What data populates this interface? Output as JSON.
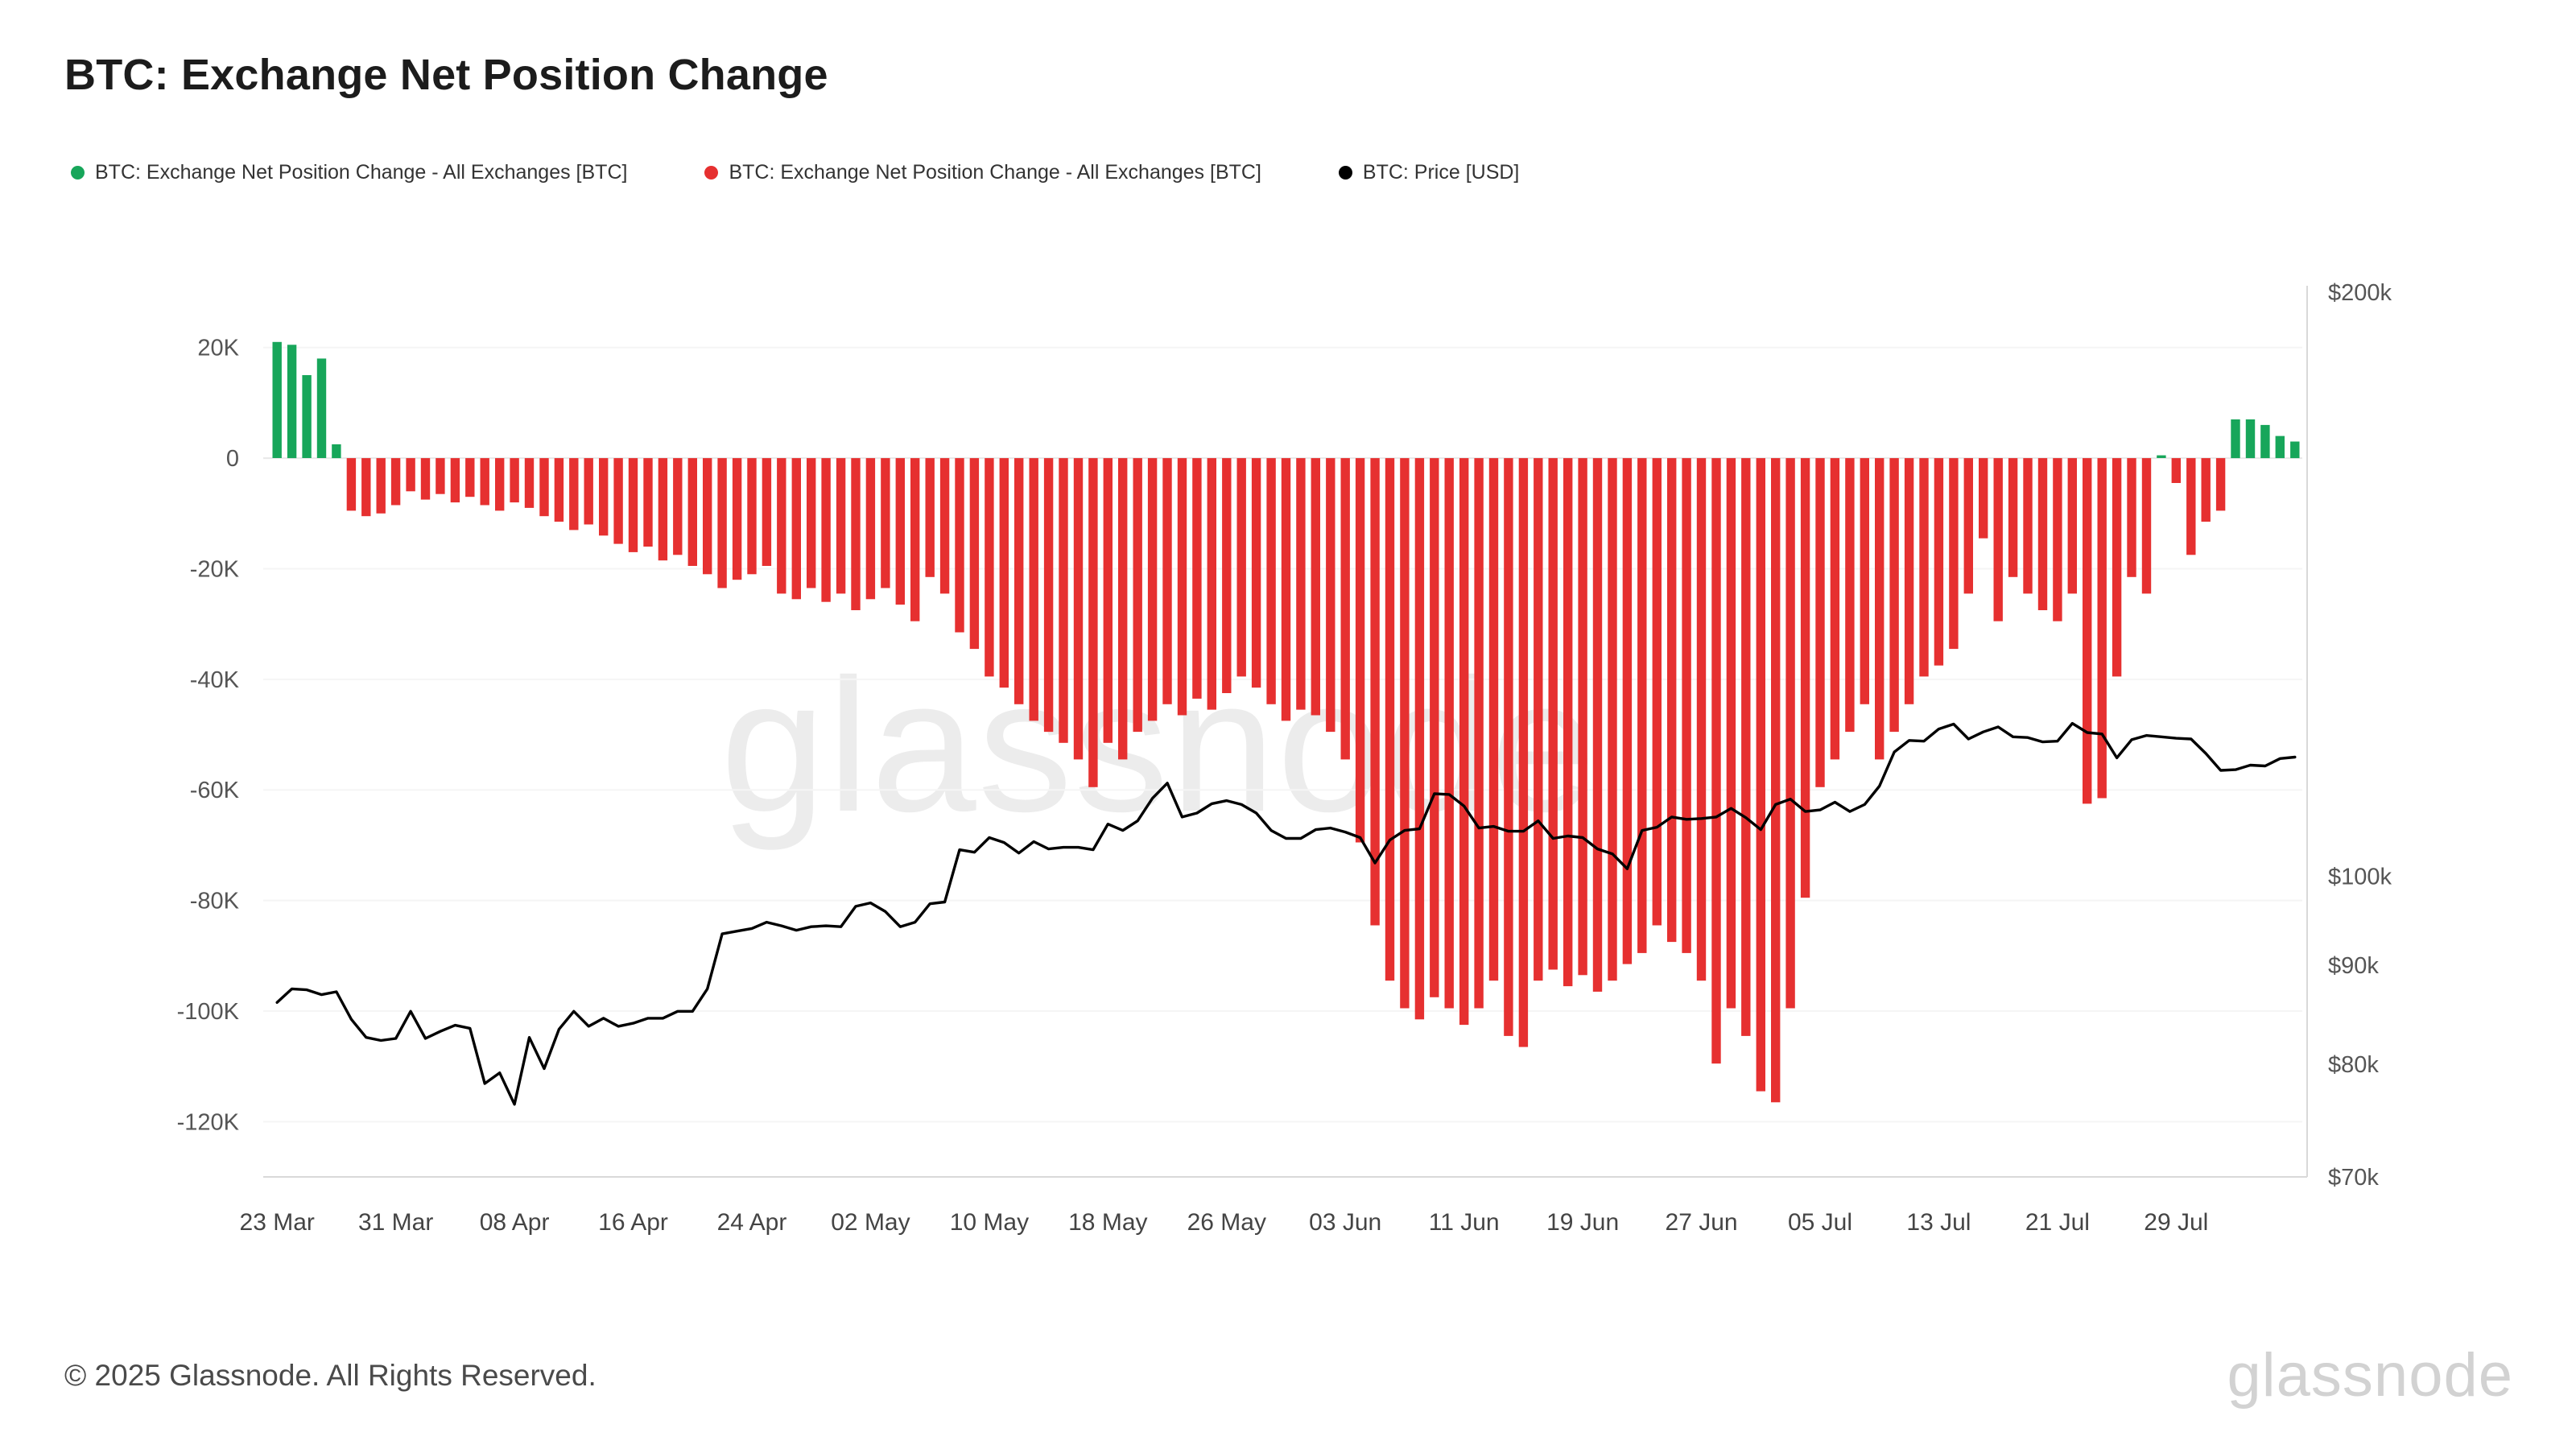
{
  "title": "BTC: Exchange Net Position Change",
  "watermark": "glassnode",
  "legend": {
    "items": [
      {
        "label": "BTC: Exchange Net Position Change - All Exchanges [BTC]",
        "color": "#17a65a",
        "marker": "dot"
      },
      {
        "label": "BTC: Exchange Net Position Change - All Exchanges [BTC]",
        "color": "#e63030",
        "marker": "dot"
      },
      {
        "label": "BTC: Price [USD]",
        "color": "#000000",
        "marker": "dot"
      }
    ]
  },
  "footer": {
    "copyright": "© 2025 Glassnode. All Rights Reserved.",
    "logo": "glassnode"
  },
  "chart_data": {
    "type": "bar",
    "title": "BTC: Exchange Net Position Change",
    "grid": "faint-horizontal",
    "legend_position": "top-left",
    "x_start_label": "23 Mar",
    "x_ticks": [
      {
        "label": "23 Mar",
        "index": 0
      },
      {
        "label": "31 Mar",
        "index": 8
      },
      {
        "label": "08 Apr",
        "index": 16
      },
      {
        "label": "16 Apr",
        "index": 24
      },
      {
        "label": "24 Apr",
        "index": 32
      },
      {
        "label": "02 May",
        "index": 40
      },
      {
        "label": "10 May",
        "index": 48
      },
      {
        "label": "18 May",
        "index": 56
      },
      {
        "label": "26 May",
        "index": 64
      },
      {
        "label": "03 Jun",
        "index": 72
      },
      {
        "label": "11 Jun",
        "index": 80
      },
      {
        "label": "19 Jun",
        "index": 88
      },
      {
        "label": "27 Jun",
        "index": 96
      },
      {
        "label": "05 Jul",
        "index": 104
      },
      {
        "label": "13 Jul",
        "index": 112
      },
      {
        "label": "21 Jul",
        "index": 120
      },
      {
        "label": "29 Jul",
        "index": 128
      }
    ],
    "left_axis": {
      "scale": "linear",
      "units": "K BTC",
      "ylim": [
        -130,
        30
      ],
      "ticks": [
        {
          "v": 20,
          "label": "20K"
        },
        {
          "v": 0,
          "label": "0"
        },
        {
          "v": -20,
          "label": "-20K"
        },
        {
          "v": -40,
          "label": "-40K"
        },
        {
          "v": -60,
          "label": "-60K"
        },
        {
          "v": -80,
          "label": "-80K"
        },
        {
          "v": -100,
          "label": "-100K"
        },
        {
          "v": -120,
          "label": "-120K"
        }
      ]
    },
    "right_axis": {
      "scale": "log",
      "units": "USD (thousands)",
      "ylim": [
        70,
        200
      ],
      "ticks": [
        {
          "v": 200,
          "label": "$200k"
        },
        {
          "v": 100,
          "label": "$100k"
        },
        {
          "v": 90,
          "label": "$90k"
        },
        {
          "v": 80,
          "label": "$80k"
        },
        {
          "v": 70,
          "label": "$70k"
        }
      ]
    },
    "bar_series": {
      "name": "BTC: Exchange Net Position Change - All Exchanges [BTC]",
      "units": "K BTC per day",
      "positive_color": "#17a65a",
      "negative_color": "#e63030",
      "values": [
        21,
        20.5,
        15,
        18,
        2.5,
        -9.5,
        -10.5,
        -10,
        -8.5,
        -6,
        -7.5,
        -6.5,
        -8,
        -7,
        -8.5,
        -9.5,
        -8,
        -9,
        -10.5,
        -11.5,
        -13,
        -12,
        -14,
        -15.5,
        -17,
        -16,
        -18.5,
        -17.5,
        -19.5,
        -21,
        -23.5,
        -22,
        -21,
        -19.5,
        -24.5,
        -25.5,
        -23.5,
        -26,
        -24.5,
        -27.5,
        -25.5,
        -23.5,
        -26.5,
        -29.5,
        -21.5,
        -24.5,
        -31.5,
        -34.5,
        -39.5,
        -41.5,
        -44.5,
        -47.5,
        -49.5,
        -51.5,
        -54.5,
        -59.5,
        -51.5,
        -54.5,
        -49.5,
        -47.5,
        -44.5,
        -46.5,
        -43.5,
        -45.5,
        -42.5,
        -39.5,
        -41.5,
        -44.5,
        -47.5,
        -45.5,
        -46.5,
        -49.5,
        -54.5,
        -69.5,
        -84.5,
        -94.5,
        -99.5,
        -101.5,
        -97.5,
        -99.5,
        -102.5,
        -99.5,
        -94.5,
        -104.5,
        -106.5,
        -94.5,
        -92.5,
        -95.5,
        -93.5,
        -96.5,
        -94.5,
        -91.5,
        -89.5,
        -84.5,
        -87.5,
        -89.5,
        -94.5,
        -109.5,
        -99.5,
        -104.5,
        -114.5,
        -116.5,
        -99.5,
        -79.5,
        -59.5,
        -54.5,
        -49.5,
        -44.5,
        -54.5,
        -49.5,
        -44.5,
        -39.5,
        -37.5,
        -34.5,
        -24.5,
        -14.5,
        -29.5,
        -21.5,
        -24.5,
        -27.5,
        -29.5,
        -24.5,
        -62.5,
        -61.5,
        -39.5,
        -21.5,
        -24.5,
        0.5,
        -4.5,
        -17.5,
        -11.5,
        -9.5,
        7,
        7,
        6,
        4,
        3
      ]
    },
    "line_series": {
      "name": "BTC: Price [USD]",
      "units": "USD (thousands)",
      "color": "#000000",
      "values": [
        86.1,
        87.5,
        87.4,
        86.9,
        87.2,
        84.4,
        82.6,
        82.3,
        82.5,
        85.2,
        82.5,
        83.2,
        83.8,
        83.5,
        78.2,
        79.2,
        76.3,
        82.6,
        79.6,
        83.4,
        85.2,
        83.7,
        84.5,
        83.7,
        84,
        84.5,
        84.5,
        85.2,
        85.2,
        87.5,
        93.4,
        93.7,
        94,
        94.7,
        94.3,
        93.8,
        94.2,
        94.3,
        94.2,
        96.5,
        96.9,
        95.9,
        94.2,
        94.7,
        96.8,
        97,
        103.2,
        102.9,
        104.7,
        104.1,
        102.8,
        104.2,
        103.3,
        103.5,
        103.5,
        103.2,
        106.4,
        105.6,
        106.8,
        109.7,
        111.7,
        107.3,
        107.8,
        109,
        109.4,
        108.9,
        107.8,
        105.6,
        104.6,
        104.6,
        105.7,
        105.9,
        105.4,
        104.7,
        101.6,
        104.4,
        105.6,
        105.8,
        110.3,
        110.2,
        108.7,
        105.9,
        106.1,
        105.5,
        105.5,
        106.8,
        104.6,
        104.9,
        104.7,
        103.3,
        102.7,
        100.9,
        105.6,
        106,
        107.3,
        107,
        107.1,
        107.3,
        108.4,
        107.2,
        105.7,
        108.9,
        109.6,
        108,
        108.2,
        109.2,
        108,
        108.9,
        111.3,
        115.9,
        117.5,
        117.4,
        119.1,
        119.8,
        117.7,
        118.7,
        119.4,
        118,
        117.9,
        117.3,
        117.4,
        119.9,
        118.6,
        118.4,
        115.1,
        117.6,
        118.2,
        118,
        117.8,
        117.7,
        115.7,
        113.4,
        113.5,
        114.1,
        114,
        115,
        115.2
      ]
    }
  }
}
